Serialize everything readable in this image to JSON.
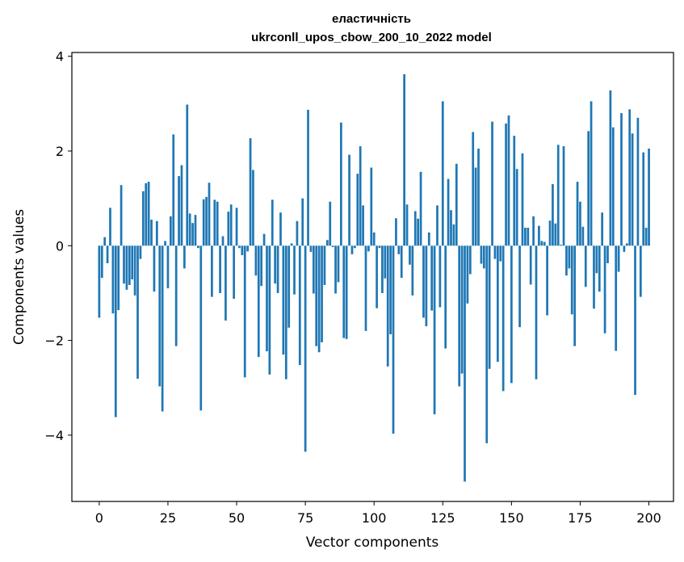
{
  "chart_data": {
    "type": "bar",
    "title_line1": "еластичність",
    "title_line2": "ukrconll_upos_cbow_200_10_2022 model",
    "xlabel": "Vector components",
    "ylabel": "Components values",
    "xlim": [
      -9.95,
      208.95
    ],
    "ylim": [
      -5.4,
      4.08
    ],
    "xticks": [
      0,
      25,
      50,
      75,
      100,
      125,
      150,
      175,
      200
    ],
    "yticks": [
      -4,
      -2,
      0,
      2,
      4
    ],
    "ytick_labels": [
      "−4",
      "−2",
      "0",
      "2",
      "4"
    ],
    "bar_color": "#1f77b4",
    "values": [
      -1.52,
      -0.68,
      0.18,
      -0.37,
      0.8,
      -1.43,
      -3.62,
      -1.36,
      1.28,
      -0.8,
      -0.93,
      -0.83,
      -0.71,
      -1.05,
      -2.81,
      -0.28,
      1.15,
      1.32,
      1.35,
      0.55,
      -0.97,
      0.52,
      -2.97,
      -3.5,
      0.1,
      -0.9,
      0.62,
      2.35,
      -2.12,
      1.47,
      1.7,
      -0.48,
      2.98,
      0.68,
      0.48,
      0.65,
      -0.05,
      -3.48,
      0.98,
      1.03,
      1.33,
      -1.08,
      0.97,
      0.93,
      -1.0,
      0.2,
      -1.58,
      0.72,
      0.87,
      -1.12,
      0.8,
      -0.05,
      -0.2,
      -2.78,
      -0.12,
      2.27,
      1.6,
      -0.63,
      -2.35,
      -0.85,
      0.25,
      -2.23,
      -2.72,
      0.97,
      -0.8,
      -1.0,
      0.7,
      -2.3,
      -2.82,
      -1.73,
      0.05,
      -1.03,
      0.52,
      -2.52,
      1.0,
      -4.35,
      2.87,
      -0.13,
      -1.01,
      -2.12,
      -2.25,
      -2.04,
      -0.83,
      0.12,
      0.93,
      -0.03,
      -1.01,
      -0.77,
      2.6,
      -1.95,
      -1.97,
      1.92,
      -0.18,
      -0.05,
      1.52,
      2.1,
      0.85,
      -1.8,
      -0.12,
      1.65,
      0.28,
      -1.32,
      -0.05,
      -1.0,
      -0.69,
      -2.55,
      -1.87,
      -3.97,
      0.58,
      -0.18,
      -0.68,
      3.62,
      0.87,
      -0.4,
      -1.05,
      0.73,
      0.57,
      1.56,
      -1.52,
      -1.7,
      0.28,
      -1.37,
      -3.56,
      0.85,
      -1.3,
      3.05,
      -2.17,
      1.41,
      0.75,
      0.45,
      1.73,
      -2.97,
      -2.7,
      -4.98,
      -1.22,
      -0.6,
      2.4,
      1.65,
      2.05,
      -0.38,
      -0.48,
      -4.17,
      -2.6,
      2.62,
      -0.28,
      -2.45,
      -0.33,
      -3.07,
      2.58,
      2.75,
      -2.9,
      2.32,
      1.62,
      -1.72,
      1.95,
      0.38,
      0.38,
      -0.82,
      0.62,
      -2.82,
      0.42,
      0.1,
      0.08,
      -1.47,
      0.53,
      1.3,
      0.47,
      2.13,
      0.02,
      2.1,
      -0.63,
      -0.48,
      -1.45,
      -2.12,
      1.35,
      0.93,
      0.4,
      -0.87,
      2.42,
      3.05,
      -1.33,
      -0.58,
      -0.97,
      0.7,
      -1.85,
      -0.37,
      3.28,
      2.5,
      -2.22,
      -0.55,
      2.8,
      -0.13,
      0.05,
      2.88,
      2.37,
      -3.15,
      2.7,
      -1.08,
      1.97,
      0.38,
      2.05
    ]
  }
}
